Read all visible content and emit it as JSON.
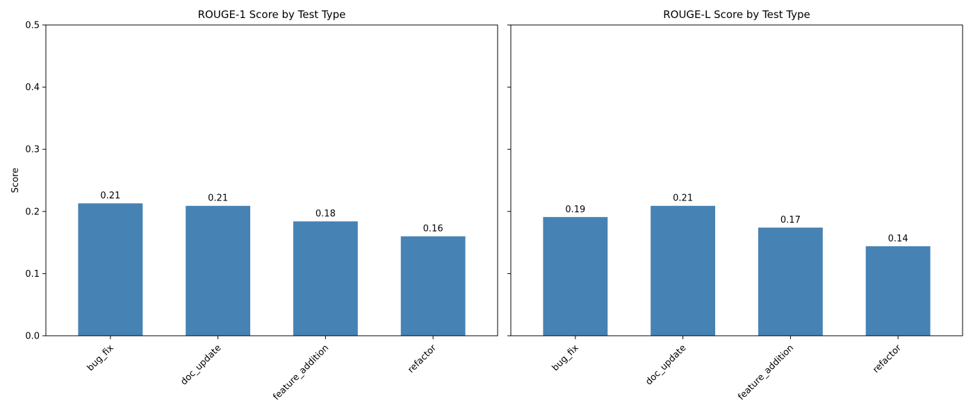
{
  "chart_data": [
    {
      "type": "bar",
      "title": "ROUGE-1 Score by Test Type",
      "xlabel": "",
      "ylabel": "Score",
      "ylim": [
        0,
        0.5
      ],
      "yticks": [
        "0.0",
        "0.1",
        "0.2",
        "0.3",
        "0.4",
        "0.5"
      ],
      "categories": [
        "bug_fix",
        "doc_update",
        "feature_addition",
        "refactor"
      ],
      "values": [
        0.213,
        0.209,
        0.184,
        0.16
      ],
      "data_labels": [
        "0.21",
        "0.21",
        "0.18",
        "0.16"
      ],
      "bar_color": "#4682b4",
      "grid": false,
      "show_ytick_labels": true
    },
    {
      "type": "bar",
      "title": "ROUGE-L Score by Test Type",
      "xlabel": "",
      "ylabel": "",
      "ylim": [
        0,
        0.5
      ],
      "yticks": [
        "0.0",
        "0.1",
        "0.2",
        "0.3",
        "0.4",
        "0.5"
      ],
      "categories": [
        "bug_fix",
        "doc_update",
        "feature_addition",
        "refactor"
      ],
      "values": [
        0.191,
        0.209,
        0.174,
        0.144
      ],
      "data_labels": [
        "0.19",
        "0.21",
        "0.17",
        "0.14"
      ],
      "bar_color": "#4682b4",
      "grid": false,
      "show_ytick_labels": false
    }
  ]
}
